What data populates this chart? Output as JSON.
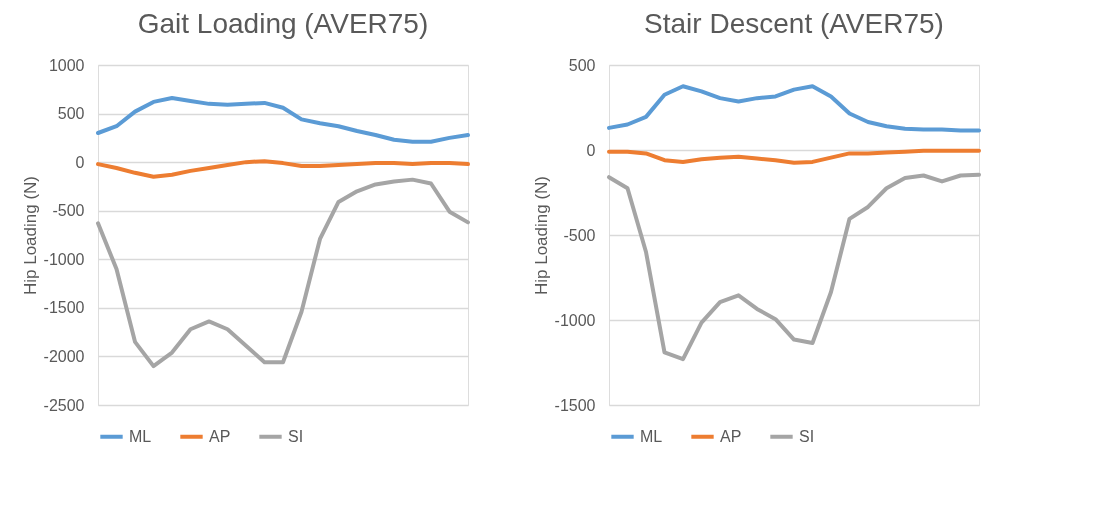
{
  "chart_data": [
    {
      "type": "line",
      "title": "Gait Loading (AVER75)",
      "ylabel": "Hip Loading (N)",
      "categories": [
        null,
        null,
        null,
        null,
        null,
        null,
        null,
        null,
        null,
        null,
        null,
        null,
        null,
        null,
        null,
        null,
        null,
        null,
        null,
        null,
        null
      ],
      "series": [
        {
          "name": "ML",
          "color": "#5b9bd5",
          "values": [
            300,
            370,
            520,
            620,
            660,
            630,
            600,
            590,
            600,
            610,
            560,
            440,
            400,
            370,
            320,
            280,
            230,
            210,
            210,
            250,
            280
          ]
        },
        {
          "name": "AP",
          "color": "#ed7d31",
          "values": [
            -20,
            -60,
            -110,
            -150,
            -130,
            -90,
            -60,
            -30,
            0,
            10,
            -10,
            -40,
            -40,
            -30,
            -20,
            -10,
            -10,
            -20,
            -10,
            -10,
            -20
          ]
        },
        {
          "name": "SI",
          "color": "#a5a5a5",
          "values": [
            -630,
            -1100,
            -1850,
            -2100,
            -1960,
            -1720,
            -1640,
            -1720,
            -1890,
            -2060,
            -2060,
            -1540,
            -790,
            -410,
            -300,
            -230,
            -200,
            -180,
            -220,
            -510,
            -620
          ]
        }
      ],
      "ylim": [
        -2500,
        1000
      ],
      "yticks": [
        -2500,
        -2000,
        -1500,
        -1000,
        -500,
        0,
        500,
        1000
      ],
      "grid": "y",
      "legend": "bottom",
      "tick_labels": "y"
    },
    {
      "type": "line",
      "title": "Stair Descent (AVER75)",
      "ylabel": "Hip Loading (N)",
      "categories": [
        null,
        null,
        null,
        null,
        null,
        null,
        null,
        null,
        null,
        null,
        null,
        null,
        null,
        null,
        null,
        null,
        null,
        null,
        null,
        null,
        null
      ],
      "series": [
        {
          "name": "ML",
          "color": "#5b9bd5",
          "values": [
            130,
            150,
            195,
            325,
            375,
            345,
            305,
            285,
            305,
            315,
            355,
            375,
            315,
            215,
            165,
            140,
            125,
            120,
            120,
            115,
            115
          ]
        },
        {
          "name": "AP",
          "color": "#ed7d31",
          "values": [
            -10,
            -10,
            -20,
            -60,
            -70,
            -55,
            -45,
            -40,
            -50,
            -60,
            -75,
            -70,
            -45,
            -20,
            -20,
            -15,
            -10,
            -5,
            -5,
            -5,
            -5
          ]
        },
        {
          "name": "SI",
          "color": "#a5a5a5",
          "values": [
            -160,
            -225,
            -600,
            -1190,
            -1230,
            -1015,
            -895,
            -855,
            -935,
            -995,
            -1115,
            -1135,
            -835,
            -405,
            -335,
            -225,
            -165,
            -150,
            -185,
            -150,
            -145
          ]
        }
      ],
      "ylim": [
        -1500,
        500
      ],
      "yticks": [
        -1500,
        -1000,
        -500,
        0,
        500
      ],
      "grid": "y",
      "legend": "bottom",
      "tick_labels": "y"
    }
  ]
}
